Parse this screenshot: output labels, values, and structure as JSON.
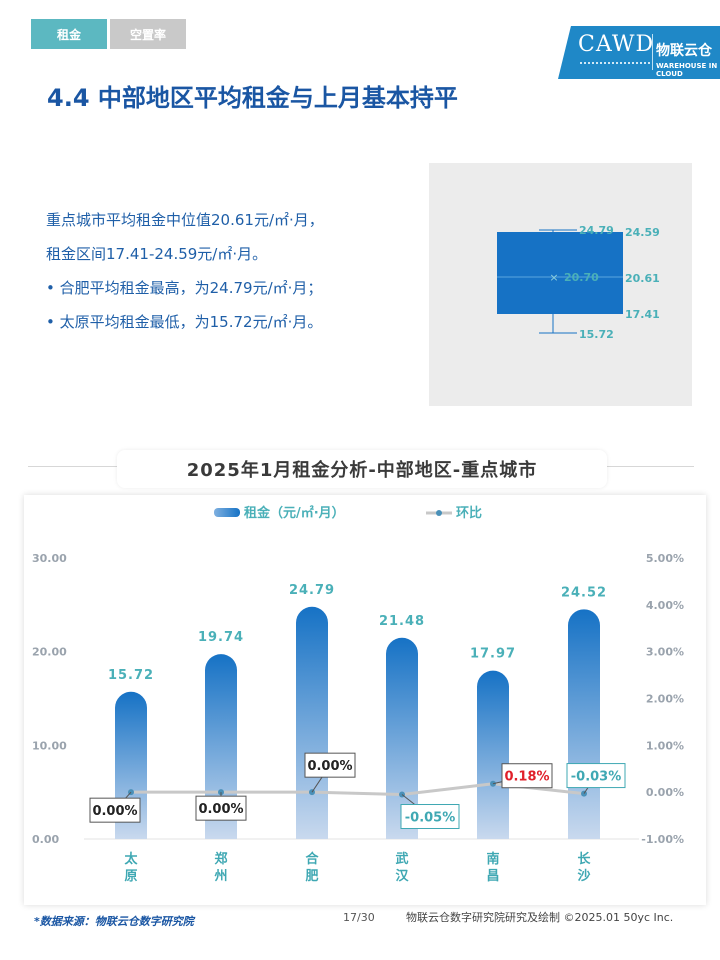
{
  "tabs": {
    "rent": "租金",
    "vacancy": "空置率"
  },
  "logo": {
    "main": "CAWD",
    "cn": "物联云仓",
    "en": "WAREHOUSE IN CLOUD"
  },
  "page_title": "4.4 中部地区平均租金与上月基本持平",
  "summary": {
    "line1": "重点城市平均租金中位值20.61元/㎡·月，",
    "line2": "租金区间17.41-24.59元/㎡·月。",
    "bullet1": "合肥平均租金最高，为24.79元/㎡·月；",
    "bullet2": "太原平均租金最低，为15.72元/㎡·月。"
  },
  "boxplot": {
    "max": 24.79,
    "q3": 24.59,
    "mean": 20.7,
    "median": 20.61,
    "q1": 17.41,
    "min": 15.72,
    "labels": {
      "max": "24.79",
      "q3": "24.59",
      "mean": "20.70",
      "median": "20.61",
      "q1": "17.41",
      "min": "15.72"
    },
    "box_color": "#1672c5",
    "label_color": "#4ab0b8"
  },
  "chart_title": "2025年1月租金分析-中部地区-重点城市",
  "chart_data": {
    "type": "bar",
    "categories": [
      "太原",
      "郑州",
      "合肥",
      "武汉",
      "南昌",
      "长沙"
    ],
    "series": [
      {
        "name": "租金（元/㎡·月）",
        "type": "bar",
        "axis": "left",
        "values": [
          15.72,
          19.74,
          24.79,
          21.48,
          17.97,
          24.52
        ],
        "labels": [
          "15.72",
          "19.74",
          "24.79",
          "21.48",
          "17.97",
          "24.52"
        ]
      },
      {
        "name": "环比",
        "type": "line",
        "axis": "right",
        "values": [
          0.0,
          0.0,
          0.0,
          -0.05,
          0.18,
          -0.03
        ],
        "labels": [
          "0.00%",
          "0.00%",
          "0.00%",
          "-0.05%",
          "0.18%",
          "-0.03%"
        ]
      }
    ],
    "y_left": {
      "ylim": [
        0,
        30
      ],
      "ticks": [
        "30.00",
        "20.00",
        "10.00",
        "0.00"
      ],
      "tick_values": [
        30,
        20,
        10,
        0
      ]
    },
    "y_right": {
      "ylim": [
        -1,
        5
      ],
      "ticks": [
        "5.00%",
        "4.00%",
        "3.00%",
        "2.00%",
        "1.00%",
        "0.00%",
        "-1.00%"
      ],
      "tick_values": [
        5,
        4,
        3,
        2,
        1,
        0,
        -1
      ]
    },
    "legend_position": "top-center",
    "colors": {
      "bar": "#1672c5",
      "line": "#c8c8c8",
      "marker": "#4a90b8",
      "pos_label": "#e0202a",
      "neg_label": "#3fa8b3",
      "zero_label": "#222222",
      "axis_text": "#4ab0b8",
      "category_text": "#3fa8b3"
    }
  },
  "footer": {
    "source": "*数据来源：物联云仓数字研究院",
    "page": "17/30",
    "credit": "物联云仓数字研究院研究及绘制  ©2025.01 50yc Inc."
  }
}
